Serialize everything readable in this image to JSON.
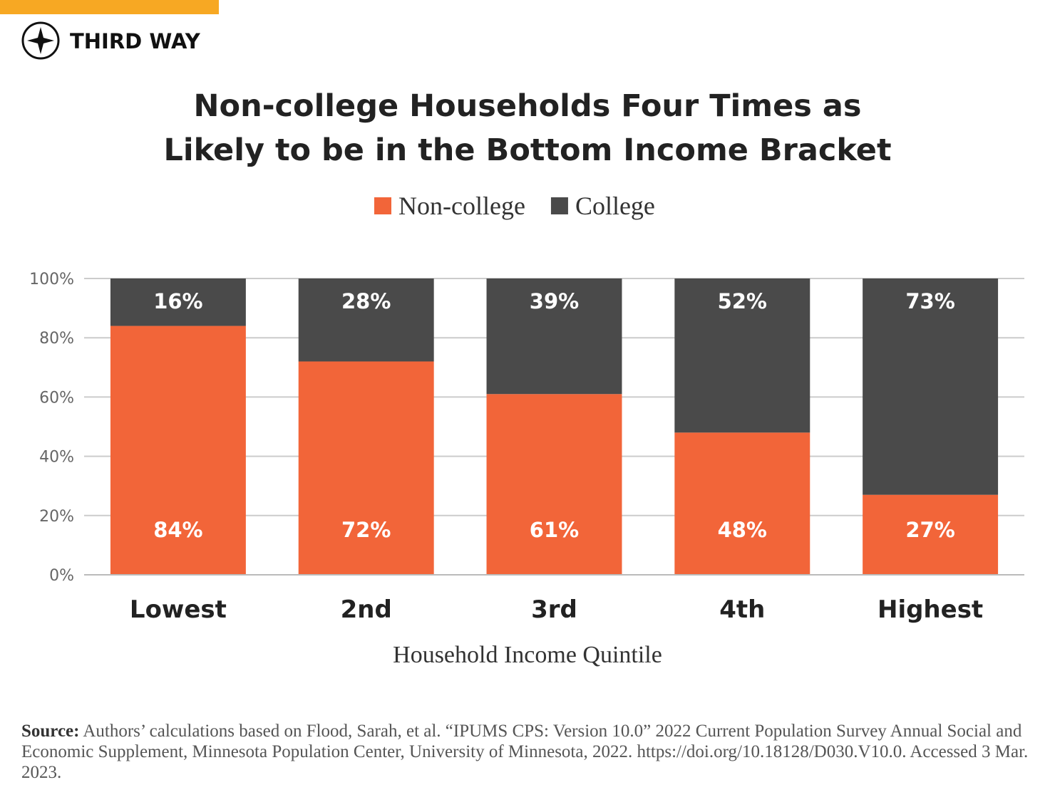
{
  "logo": "THIRD WAY",
  "source_label": "Source:",
  "source_text": "Authors’ calculations based on Flood, Sarah, et al. “IPUMS CPS: Version 10.0” 2022 Current Population Survey Annual Social and Economic Supplement, Minnesota Population Center, University of Minnesota, 2022. https://doi.org/10.18128/D030.V10.0. Accessed 3 Mar. 2023.",
  "chart_data": {
    "type": "stacked_bar",
    "title": "Non-college Households Four Times as Likely to be in the Bottom Income Bracket",
    "x_label": "Household Income Quintile",
    "categories": [
      "Lowest",
      "2nd",
      "3rd",
      "4th",
      "Highest"
    ],
    "series": [
      {
        "name": "Non-college",
        "color": "#f26539",
        "values": [
          84,
          72,
          61,
          48,
          27
        ],
        "value_labels": [
          "84%",
          "72%",
          "61%",
          "48%",
          "27%"
        ]
      },
      {
        "name": "College",
        "color": "#4a4a4a",
        "values": [
          16,
          28,
          39,
          52,
          73
        ],
        "value_labels": [
          "16%",
          "28%",
          "39%",
          "52%",
          "73%"
        ]
      }
    ],
    "ylim": [
      0,
      100
    ],
    "yticks": [
      {
        "value": 0,
        "label": "0%"
      },
      {
        "value": 20,
        "label": "20%"
      },
      {
        "value": 40,
        "label": "40%"
      },
      {
        "value": 60,
        "label": "60%"
      },
      {
        "value": 80,
        "label": "80%"
      },
      {
        "value": 100,
        "label": "100%"
      }
    ],
    "grid": true,
    "legend": "top"
  }
}
